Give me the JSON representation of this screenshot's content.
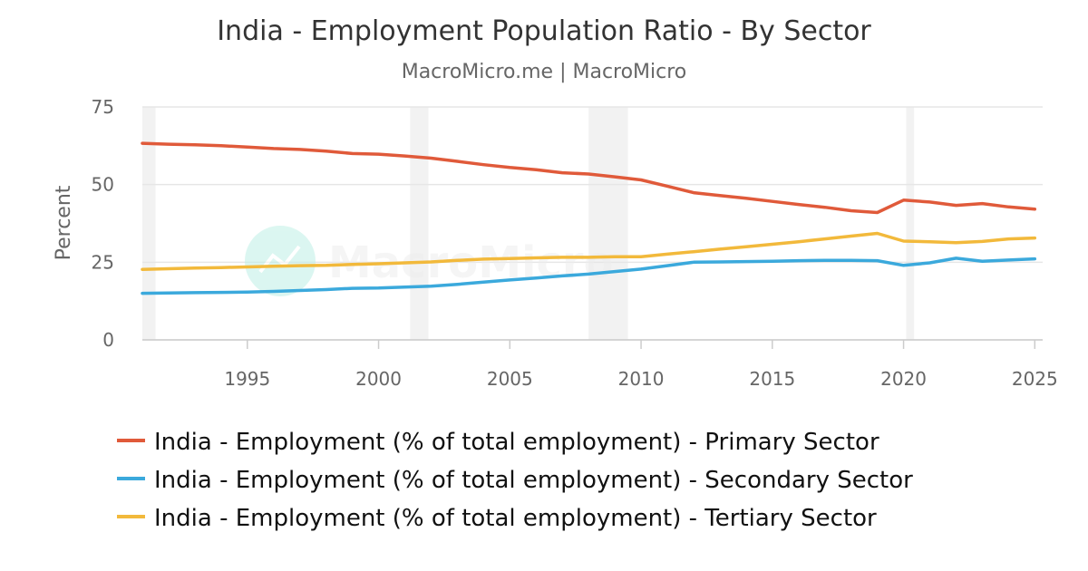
{
  "chart_data": {
    "type": "line",
    "title": "India - Employment Population Ratio - By Sector",
    "subtitle": "MacroMicro.me | MacroMicro",
    "ylabel": "Percent",
    "xlabel": "",
    "xlim": [
      1991,
      2025.3
    ],
    "ylim": [
      0,
      75
    ],
    "x_ticks": [
      1995,
      2000,
      2005,
      2010,
      2015,
      2020,
      2025
    ],
    "y_ticks": [
      0,
      25,
      50,
      75
    ],
    "grid": true,
    "legend_position": "bottom",
    "watermark": "MacroMicro",
    "shaded_periods": [
      [
        1991.0,
        1991.5
      ],
      [
        2001.2,
        2001.9
      ],
      [
        2008.0,
        2009.5
      ],
      [
        2020.1,
        2020.4
      ]
    ],
    "x": [
      1991,
      1992,
      1993,
      1994,
      1995,
      1996,
      1997,
      1998,
      1999,
      2000,
      2001,
      2002,
      2003,
      2004,
      2005,
      2006,
      2007,
      2008,
      2009,
      2010,
      2011,
      2012,
      2013,
      2014,
      2015,
      2016,
      2017,
      2018,
      2019,
      2020,
      2021,
      2022,
      2023,
      2024,
      2025
    ],
    "series": [
      {
        "name": "India - Employment (% of total employment) - Primary Sector",
        "color": "#e05a3a",
        "values": [
          63.3,
          63.0,
          62.8,
          62.5,
          62.1,
          61.6,
          61.3,
          60.8,
          60.0,
          59.8,
          59.2,
          58.5,
          57.5,
          56.4,
          55.5,
          54.8,
          53.8,
          53.4,
          52.5,
          51.5,
          49.5,
          47.4,
          46.5,
          45.6,
          44.6,
          43.6,
          42.7,
          41.6,
          41.0,
          45.0,
          44.4,
          43.3,
          43.9,
          42.8,
          42.1
        ]
      },
      {
        "name": "India - Employment (% of total employment) - Secondary Sector",
        "color": "#3ba9dc",
        "values": [
          15.0,
          15.1,
          15.2,
          15.3,
          15.4,
          15.6,
          15.9,
          16.2,
          16.6,
          16.7,
          17.0,
          17.3,
          17.9,
          18.6,
          19.3,
          19.9,
          20.6,
          21.2,
          22.0,
          22.8,
          23.9,
          25.0,
          25.1,
          25.2,
          25.3,
          25.5,
          25.6,
          25.6,
          25.5,
          24.0,
          24.8,
          26.3,
          25.3,
          25.7,
          26.1
        ]
      },
      {
        "name": "India - Employment (% of total employment) - Tertiary Sector",
        "color": "#f2b93b",
        "values": [
          22.7,
          22.9,
          23.1,
          23.3,
          23.5,
          23.7,
          23.9,
          24.0,
          24.3,
          24.5,
          24.8,
          25.1,
          25.6,
          26.0,
          26.2,
          26.4,
          26.6,
          26.6,
          26.8,
          26.8,
          27.6,
          28.4,
          29.2,
          30.0,
          30.8,
          31.6,
          32.5,
          33.4,
          34.3,
          31.8,
          31.6,
          31.3,
          31.7,
          32.5,
          32.8
        ]
      }
    ]
  }
}
